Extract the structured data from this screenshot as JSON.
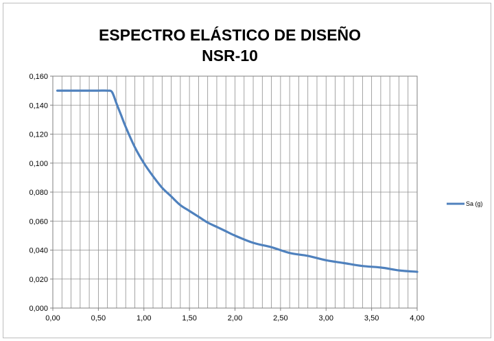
{
  "chart_data": {
    "type": "line",
    "title_lines": [
      "ESPECTRO ELÁSTICO DE DISEÑO",
      "NSR-10"
    ],
    "xlabel": "",
    "ylabel": "",
    "xlim": [
      0,
      4
    ],
    "ylim": [
      0,
      0.16
    ],
    "x_ticks": [
      "0,00",
      "0,50",
      "1,00",
      "1,50",
      "2,00",
      "2,50",
      "3,00",
      "3,50",
      "4,00"
    ],
    "y_ticks": [
      "0,000",
      "0,020",
      "0,040",
      "0,060",
      "0,080",
      "0,100",
      "0,120",
      "0,140",
      "0,160"
    ],
    "grid": {
      "horizontal": true,
      "vertical_minor_step": 0.1
    },
    "legend": {
      "position": "right",
      "entries": [
        "Sa (g)"
      ]
    },
    "series": [
      {
        "name": "Sa (g)",
        "color": "#4f81bd",
        "x": [
          0.05,
          0.1,
          0.2,
          0.3,
          0.4,
          0.5,
          0.6,
          0.65,
          0.7,
          0.75,
          0.8,
          0.9,
          1.0,
          1.1,
          1.2,
          1.3,
          1.4,
          1.5,
          1.6,
          1.7,
          1.8,
          1.9,
          2.0,
          2.2,
          2.4,
          2.6,
          2.8,
          3.0,
          3.2,
          3.4,
          3.6,
          3.8,
          4.0
        ],
        "y": [
          0.15,
          0.15,
          0.15,
          0.15,
          0.15,
          0.15,
          0.15,
          0.149,
          0.141,
          0.133,
          0.125,
          0.111,
          0.1,
          0.091,
          0.083,
          0.077,
          0.071,
          0.067,
          0.063,
          0.059,
          0.056,
          0.053,
          0.05,
          0.045,
          0.042,
          0.038,
          0.036,
          0.033,
          0.031,
          0.029,
          0.028,
          0.026,
          0.025
        ]
      }
    ]
  }
}
